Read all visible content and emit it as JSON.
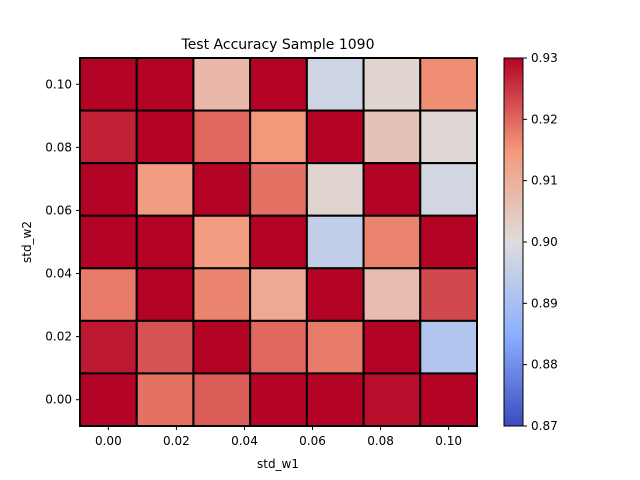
{
  "chart_data": {
    "type": "heatmap",
    "title": "Test Accuracy Sample 1090",
    "xlabel": "std_w1",
    "ylabel": "std_w2",
    "x_ticks": [
      "0.00",
      "0.02",
      "0.04",
      "0.06",
      "0.08",
      "0.10"
    ],
    "y_ticks": [
      "0.00",
      "0.02",
      "0.04",
      "0.06",
      "0.08",
      "0.10"
    ],
    "x_range": [
      0.0,
      0.1
    ],
    "y_range": [
      0.0,
      0.1
    ],
    "colormap": "coolwarm",
    "colorbar": {
      "min": 0.87,
      "max": 0.93,
      "ticks": [
        "0.87",
        "0.88",
        "0.89",
        "0.90",
        "0.91",
        "0.92",
        "0.93"
      ]
    },
    "rows_top_to_bottom": [
      [
        0.93,
        0.93,
        0.908,
        0.93,
        0.897,
        0.902,
        0.916
      ],
      [
        0.927,
        0.93,
        0.92,
        0.915,
        0.93,
        0.906,
        0.901
      ],
      [
        0.93,
        0.914,
        0.93,
        0.919,
        0.902,
        0.93,
        0.898
      ],
      [
        0.93,
        0.93,
        0.914,
        0.93,
        0.895,
        0.917,
        0.93
      ],
      [
        0.918,
        0.93,
        0.917,
        0.911,
        0.93,
        0.907,
        0.923
      ],
      [
        0.928,
        0.922,
        0.93,
        0.92,
        0.918,
        0.93,
        0.892
      ],
      [
        0.93,
        0.919,
        0.921,
        0.93,
        0.93,
        0.929,
        0.93
      ]
    ]
  }
}
